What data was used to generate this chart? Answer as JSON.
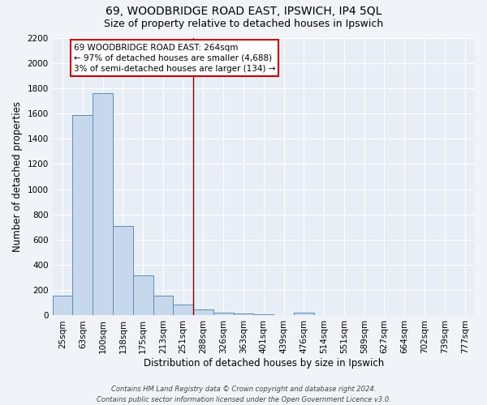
{
  "title_line1": "69, WOODBRIDGE ROAD EAST, IPSWICH, IP4 5QL",
  "title_line2": "Size of property relative to detached houses in Ipswich",
  "xlabel": "Distribution of detached houses by size in Ipswich",
  "ylabel": "Number of detached properties",
  "bar_labels": [
    "25sqm",
    "63sqm",
    "100sqm",
    "138sqm",
    "175sqm",
    "213sqm",
    "251sqm",
    "288sqm",
    "326sqm",
    "363sqm",
    "401sqm",
    "439sqm",
    "476sqm",
    "514sqm",
    "551sqm",
    "589sqm",
    "627sqm",
    "664sqm",
    "702sqm",
    "739sqm",
    "777sqm"
  ],
  "bar_values": [
    160,
    1590,
    1760,
    710,
    315,
    160,
    85,
    50,
    25,
    15,
    10,
    0,
    20,
    0,
    0,
    0,
    0,
    0,
    0,
    0,
    0
  ],
  "bar_color": "#c8d8ec",
  "bar_edge_color": "#5b8db8",
  "vline_x": 6.5,
  "vline_color": "#8b0000",
  "annotation_text": "69 WOODBRIDGE ROAD EAST: 264sqm\n← 97% of detached houses are smaller (4,688)\n3% of semi-detached houses are larger (134) →",
  "annotation_box_facecolor": "#ffffff",
  "annotation_box_edgecolor": "#cc0000",
  "ylim": [
    0,
    2200
  ],
  "yticks": [
    0,
    200,
    400,
    600,
    800,
    1000,
    1200,
    1400,
    1600,
    1800,
    2000,
    2200
  ],
  "fig_bg_color": "#f0f4f8",
  "plot_bg_color": "#e8eef5",
  "footer_line1": "Contains HM Land Registry data © Crown copyright and database right 2024.",
  "footer_line2": "Contains public sector information licensed under the Open Government Licence v3.0.",
  "title_fontsize": 10,
  "subtitle_fontsize": 9,
  "axis_label_fontsize": 8.5,
  "tick_fontsize": 7.5,
  "annotation_fontsize": 7.5,
  "footer_fontsize": 6
}
